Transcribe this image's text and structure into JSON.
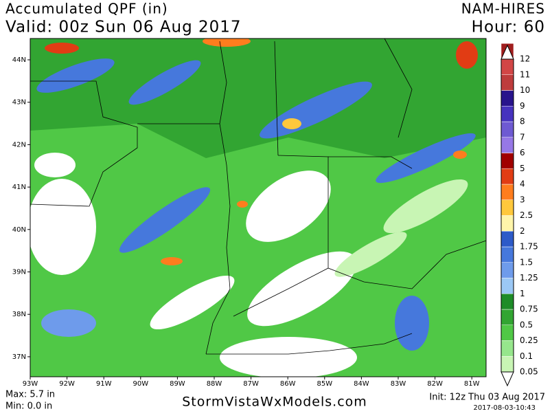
{
  "header": {
    "title": "Accumulated QPF (in)",
    "valid": "Valid: 00z Sun 06 Aug 2017",
    "model": "NAM-HIRES",
    "hour": "Hour: 60"
  },
  "map": {
    "lat_labels": [
      "44N",
      "43N",
      "42N",
      "41N",
      "40N",
      "39N",
      "38N",
      "37N"
    ],
    "lon_labels": [
      "93W",
      "92W",
      "91W",
      "90W",
      "89W",
      "88W",
      "87W",
      "86W",
      "85W",
      "84W",
      "83W",
      "82W",
      "81W"
    ]
  },
  "legend": {
    "labels": [
      "0.05",
      "0.1",
      "0.25",
      "0.5",
      "0.75",
      "1",
      "1.25",
      "1.5",
      "1.75",
      "2",
      "2.5",
      "3",
      "4",
      "5",
      "6",
      "7",
      "8",
      "9",
      "10",
      "11",
      "12"
    ],
    "colors": [
      "#c8f5b4",
      "#96e68c",
      "#50c846",
      "#32a532",
      "#1e8c28",
      "#9bc8f5",
      "#6e9beb",
      "#4678dc",
      "#2d5ac8",
      "#fff5aa",
      "#ffc83c",
      "#ff7d1e",
      "#e13c14",
      "#a00000",
      "#9678e6",
      "#6e5ad2",
      "#4632be",
      "#28148c",
      "#be3c3c",
      "#d24646",
      "#a01e1e"
    ]
  },
  "footer": {
    "max": "Max: 5.7 in",
    "min": "Min: 0.0 in",
    "site": "StormVistaWxModels.com",
    "init": "Init: 12z Thu 03 Aug 2017",
    "stamp": "2017-08-03-10:43"
  }
}
